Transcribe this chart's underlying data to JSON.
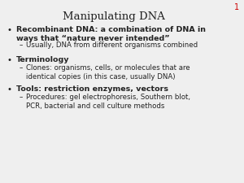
{
  "title": "Manipulating DNA",
  "slide_number": "1",
  "background_color": "#efefef",
  "title_fontsize": 9.5,
  "slide_num_fontsize": 7,
  "bullet_fontsize": 6.8,
  "sub_fontsize": 6.2,
  "title_font": "DejaVu Serif",
  "body_font": "DejaVu Sans",
  "text_color": "#222222",
  "red_color": "#cc0000",
  "bullets": [
    {
      "text": "Recombinant DNA: a combination of DNA in\nways that “nature never intended”",
      "bold": true,
      "n_lines": 2,
      "sub": [
        {
          "text": "Usually, DNA from different organisms combined",
          "n_lines": 1
        }
      ]
    },
    {
      "text": "Terminology",
      "bold": true,
      "n_lines": 1,
      "sub": [
        {
          "text": "Clones: organisms, cells, or molecules that are\nidentical copies (in this case, usually DNA)",
          "n_lines": 2
        }
      ]
    },
    {
      "text": "Tools: restriction enzymes, vectors",
      "bold": true,
      "n_lines": 1,
      "sub": [
        {
          "text": "Procedures: gel electrophoresis, Southern blot,\nPCR, bacterial and cell culture methods",
          "n_lines": 2
        }
      ]
    }
  ]
}
